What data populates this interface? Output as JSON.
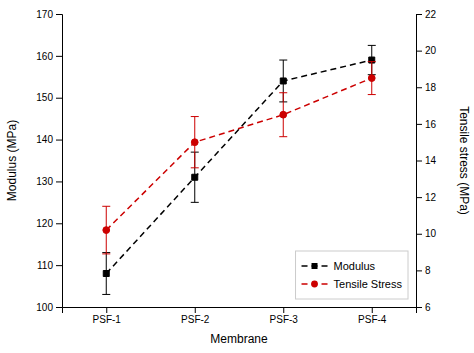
{
  "chart_data": {
    "type": "line",
    "xlabel": "Membrane",
    "ylabel": "Modulus (MPa)",
    "y2label": "Tensile stress (MPa)",
    "categories": [
      "PSF-1",
      "PSF-2",
      "PSF-3",
      "PSF-4"
    ],
    "series": [
      {
        "name": "Modulus",
        "color": "#000000",
        "marker": "square",
        "line_style": "dashed",
        "values": [
          108,
          131,
          154,
          159
        ],
        "yerr": [
          5,
          6,
          5,
          3.5
        ]
      },
      {
        "name": "Tensile Stress",
        "color": "#cc0000",
        "marker": "circle",
        "line_style": "dashed",
        "axis": "y2",
        "values": [
          10.2,
          15.0,
          16.5,
          18.5
        ],
        "yerr": [
          1.3,
          1.4,
          1.2,
          0.9
        ]
      }
    ],
    "ylim": [
      100,
      170
    ],
    "yticks": [
      100,
      110,
      120,
      130,
      140,
      150,
      160,
      170
    ],
    "y2lim": [
      6,
      22
    ],
    "y2ticks": [
      6,
      8,
      10,
      12,
      14,
      16,
      18,
      20,
      22
    ],
    "legend": "lower right",
    "grid": false
  }
}
